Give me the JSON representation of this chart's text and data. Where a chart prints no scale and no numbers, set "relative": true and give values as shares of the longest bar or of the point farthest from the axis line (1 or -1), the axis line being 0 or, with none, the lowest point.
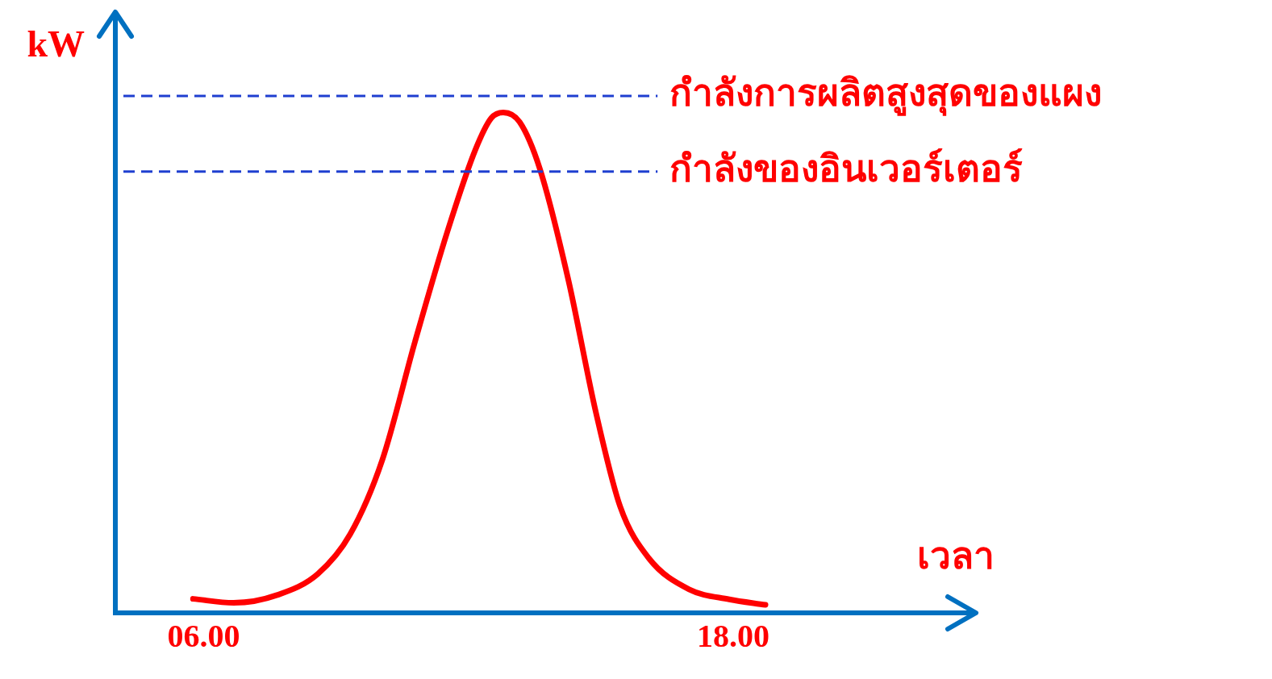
{
  "chart_data": {
    "type": "line",
    "xlabel": "เวลา",
    "ylabel": "kW",
    "relative": true,
    "xlim": [
      4,
      23.5
    ],
    "xticks": [
      {
        "value": 6,
        "label": "06.00"
      },
      {
        "value": 18,
        "label": "18.00"
      }
    ],
    "x": [
      5.76,
      6.68,
      7.68,
      8.59,
      9.32,
      10.05,
      10.79,
      11.52,
      12.16,
      12.52,
      12.79,
      13.16,
      13.62,
      14.26,
      14.89,
      15.44,
      16.08,
      17.0,
      17.91,
      18.73
    ],
    "series": [
      {
        "color": "#ff0000",
        "values": [
          0.028,
          0.02,
          0.036,
          0.078,
          0.157,
          0.306,
          0.542,
          0.761,
          0.926,
          0.989,
          1,
          0.981,
          0.887,
          0.667,
          0.4,
          0.212,
          0.11,
          0.047,
          0.027,
          0.016
        ]
      }
    ],
    "ref_lines": [
      {
        "axis": "y",
        "value": 1.033,
        "label": "กำลังการผลิตสูงสุดของแผง",
        "color": "#1f3fd0",
        "line_style": "dashed"
      },
      {
        "axis": "y",
        "value": 0.882,
        "label": "กำลังของอินเวอร์เตอร์",
        "color": "#1f3fd0",
        "line_style": "dashed"
      }
    ],
    "grid": false,
    "legend": false,
    "marker": "none",
    "line_style": "solid"
  }
}
